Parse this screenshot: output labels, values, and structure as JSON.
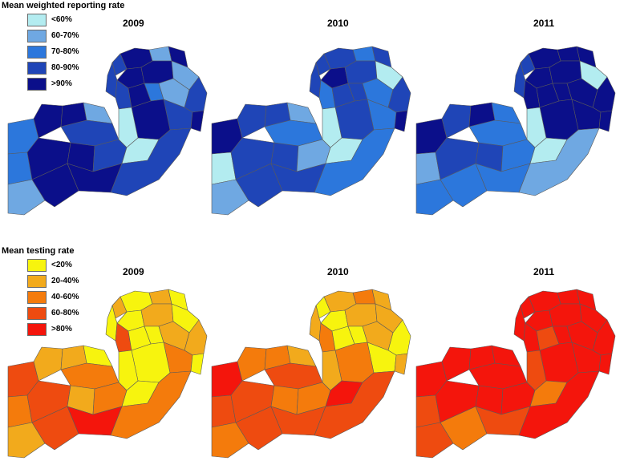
{
  "reporting": {
    "title": "Mean weighted reporting rate",
    "legend": [
      {
        "label": "<60%",
        "color": "#b3ecf0"
      },
      {
        "label": "60-70%",
        "color": "#6fa8e2"
      },
      {
        "label": "70-80%",
        "color": "#2c77dc"
      },
      {
        "label": "80-90%",
        "color": "#1f45b7"
      },
      {
        "label": ">90%",
        "color": "#0b0f8a"
      }
    ],
    "years": [
      {
        "year": "2009",
        "districts": [
          4,
          1,
          4,
          3,
          4,
          4,
          1,
          3,
          3,
          4,
          2,
          1,
          3,
          3,
          4,
          4,
          2,
          4,
          4,
          1,
          3,
          0,
          2,
          4,
          4,
          3,
          0,
          1,
          4,
          4,
          3
        ]
      },
      {
        "year": "2010",
        "districts": [
          3,
          2,
          3,
          3,
          4,
          3,
          0,
          3,
          2,
          3,
          3,
          2,
          3,
          2,
          3,
          4,
          4,
          3,
          3,
          1,
          2,
          0,
          0,
          3,
          3,
          1,
          0,
          1,
          3,
          3,
          2
        ]
      },
      {
        "year": "2011",
        "districts": [
          4,
          4,
          4,
          3,
          4,
          4,
          0,
          3,
          4,
          4,
          4,
          4,
          4,
          4,
          4,
          4,
          4,
          3,
          4,
          2,
          2,
          0,
          1,
          3,
          3,
          2,
          0,
          2,
          2,
          2,
          1
        ]
      }
    ]
  },
  "testing": {
    "title": "Mean testing rate",
    "legend": [
      {
        "label": "<20%",
        "color": "#f7f40e"
      },
      {
        "label": "20-40%",
        "color": "#f2aa1c"
      },
      {
        "label": "40-60%",
        "color": "#f47b0c"
      },
      {
        "label": "60-80%",
        "color": "#ee4b10"
      },
      {
        "label": ">80%",
        "color": "#f4150c"
      }
    ],
    "years": [
      {
        "year": "2009",
        "districts": [
          0,
          1,
          0,
          1,
          0,
          1,
          0,
          0,
          3,
          0,
          0,
          1,
          1,
          2,
          0,
          0,
          3,
          1,
          1,
          0,
          2,
          0,
          2,
          3,
          1,
          2,
          0,
          1,
          3,
          4,
          2
        ]
      },
      {
        "year": "2010",
        "districts": [
          1,
          2,
          1,
          0,
          0,
          1,
          1,
          1,
          2,
          0,
          0,
          1,
          0,
          0,
          2,
          1,
          4,
          2,
          2,
          1,
          3,
          1,
          3,
          3,
          2,
          2,
          4,
          2,
          3,
          3,
          3
        ]
      },
      {
        "year": "2011",
        "districts": [
          4,
          4,
          4,
          4,
          4,
          4,
          4,
          4,
          4,
          3,
          4,
          4,
          4,
          4,
          4,
          4,
          4,
          4,
          4,
          4,
          4,
          3,
          3,
          4,
          4,
          4,
          2,
          3,
          2,
          3,
          4
        ]
      }
    ]
  }
}
